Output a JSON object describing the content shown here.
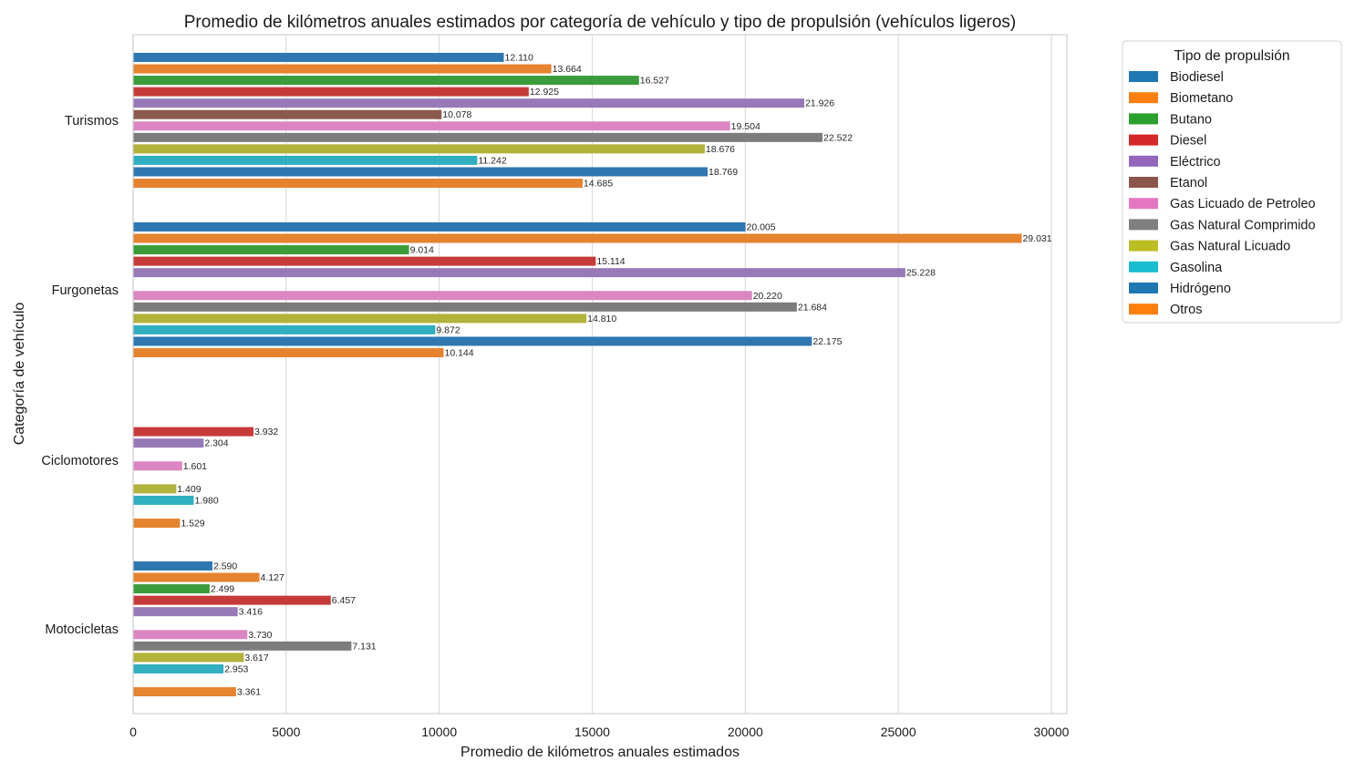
{
  "chart_data": {
    "type": "bar",
    "orientation": "horizontal",
    "title": "Promedio de kilómetros anuales estimados por categoría de vehículo y tipo de propulsión (vehículos ligeros)",
    "xlabel": "Promedio de kilómetros anuales estimados",
    "ylabel": "Categoría de vehículo",
    "xlim": [
      0,
      30500
    ],
    "xticks": [
      0,
      5000,
      10000,
      15000,
      20000,
      25000,
      30000
    ],
    "grid": "vertical",
    "legend": {
      "title": "Tipo de propulsión",
      "placement": "outside-right-top"
    },
    "categories": [
      "Turismos",
      "Furgonetas",
      "Ciclomotores",
      "Motocicletas"
    ],
    "series": [
      {
        "name": "Biodiesel",
        "color": "#2e77b0",
        "values": [
          12110,
          20005,
          null,
          2590
        ],
        "labels": [
          "12.110",
          "20.005",
          null,
          "2.590"
        ]
      },
      {
        "name": "Biometano",
        "color": "#e6832f",
        "values": [
          13664,
          29031,
          null,
          4127
        ],
        "labels": [
          "13.664",
          "29.031",
          null,
          "4.127"
        ]
      },
      {
        "name": "Butano",
        "color": "#3a9c3a",
        "values": [
          16527,
          9014,
          null,
          2499
        ],
        "labels": [
          "16.527",
          "9.014",
          null,
          "2.499"
        ]
      },
      {
        "name": "Diesel",
        "color": "#c73a3a",
        "values": [
          12925,
          15114,
          3932,
          6457
        ],
        "labels": [
          "12.925",
          "15.114",
          "3.932",
          "6.457"
        ]
      },
      {
        "name": "Eléctrico",
        "color": "#9879b8",
        "values": [
          21926,
          25228,
          2304,
          3416
        ],
        "labels": [
          "21.926",
          "25.228",
          "2.304",
          "3.416"
        ]
      },
      {
        "name": "Etanol",
        "color": "#8a5a4e",
        "values": [
          10078,
          null,
          null,
          null
        ],
        "labels": [
          "10.078",
          null,
          null,
          null
        ]
      },
      {
        "name": "Gas Licuado de Petroleo",
        "color": "#db86c2",
        "values": [
          19504,
          20220,
          1601,
          3730
        ],
        "labels": [
          "19.504",
          "20.220",
          "1.601",
          "3.730"
        ]
      },
      {
        "name": "Gas Natural Comprimido",
        "color": "#7c7c7c",
        "values": [
          22522,
          21684,
          null,
          7131
        ],
        "labels": [
          "22.522",
          "21.684",
          null,
          "7.131"
        ]
      },
      {
        "name": "Gas Natural Licuado",
        "color": "#b1b33a",
        "values": [
          18676,
          14810,
          1409,
          3617
        ],
        "labels": [
          "18.676",
          "14.810",
          "1.409",
          "3.617"
        ]
      },
      {
        "name": "Gasolina",
        "color": "#30afc0",
        "values": [
          11242,
          9872,
          1980,
          2953
        ],
        "labels": [
          "11.242",
          "9.872",
          "1.980",
          "2.953"
        ]
      },
      {
        "name": "Hidrógeno",
        "color": "#2e77b0",
        "values": [
          18769,
          22175,
          null,
          null
        ],
        "labels": [
          "18.769",
          "22.175",
          null,
          null
        ]
      },
      {
        "name": "Otros",
        "color": "#e6832f",
        "values": [
          14685,
          10144,
          1529,
          3361
        ],
        "labels": [
          "14.685",
          "10.144",
          "1.529",
          "3.361"
        ]
      }
    ],
    "legend_colors": [
      "#1f77b4",
      "#ff7f0e",
      "#2ca02c",
      "#d62728",
      "#9467bd",
      "#8c564b",
      "#e377c2",
      "#7f7f7f",
      "#bcbd22",
      "#17becf",
      "#1f77b4",
      "#ff7f0e"
    ]
  }
}
